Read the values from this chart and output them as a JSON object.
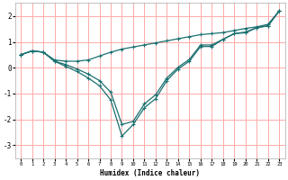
{
  "xlabel": "Humidex (Indice chaleur)",
  "bg_color": "#ffffff",
  "grid_color": "#ffaaaa",
  "line_color": "#1a7070",
  "xlim": [
    -0.5,
    23.5
  ],
  "ylim": [
    -3.5,
    2.5
  ],
  "yticks": [
    -3,
    -2,
    -1,
    0,
    1,
    2
  ],
  "xticks": [
    0,
    1,
    2,
    3,
    4,
    5,
    6,
    7,
    8,
    9,
    10,
    11,
    12,
    13,
    14,
    15,
    16,
    17,
    18,
    19,
    20,
    21,
    22,
    23
  ],
  "line1_x": [
    0,
    1,
    2,
    3,
    4,
    5,
    6,
    7,
    8,
    9,
    10,
    11,
    12,
    13,
    14,
    15,
    16,
    17,
    18,
    19,
    20,
    21,
    22,
    23
  ],
  "line1_y": [
    0.5,
    0.65,
    0.6,
    0.3,
    0.25,
    0.25,
    0.3,
    0.45,
    0.6,
    0.72,
    0.8,
    0.88,
    0.96,
    1.04,
    1.12,
    1.2,
    1.28,
    1.32,
    1.36,
    1.44,
    1.52,
    1.58,
    1.68,
    2.2
  ],
  "line2_x": [
    0,
    1,
    2,
    3,
    4,
    5,
    6,
    7,
    8,
    9,
    10,
    11,
    12,
    13,
    14,
    15,
    16,
    17,
    18,
    19,
    20,
    21,
    22,
    23
  ],
  "line2_y": [
    0.5,
    0.65,
    0.6,
    0.25,
    0.05,
    -0.15,
    -0.4,
    -0.7,
    -1.25,
    -2.65,
    -2.2,
    -1.55,
    -1.2,
    -0.5,
    -0.05,
    0.25,
    0.82,
    0.82,
    1.1,
    1.32,
    1.35,
    1.55,
    1.62,
    2.2
  ],
  "line3_x": [
    0,
    1,
    2,
    3,
    4,
    5,
    6,
    7,
    8,
    9,
    10,
    11,
    12,
    13,
    14,
    15,
    16,
    17,
    18,
    19,
    20,
    21,
    22,
    23
  ],
  "line3_y": [
    0.5,
    0.65,
    0.6,
    0.25,
    0.12,
    -0.05,
    -0.25,
    -0.5,
    -0.95,
    -2.2,
    -2.08,
    -1.4,
    -1.05,
    -0.4,
    0.02,
    0.32,
    0.88,
    0.88,
    1.1,
    1.32,
    1.38,
    1.55,
    1.62,
    2.2
  ]
}
